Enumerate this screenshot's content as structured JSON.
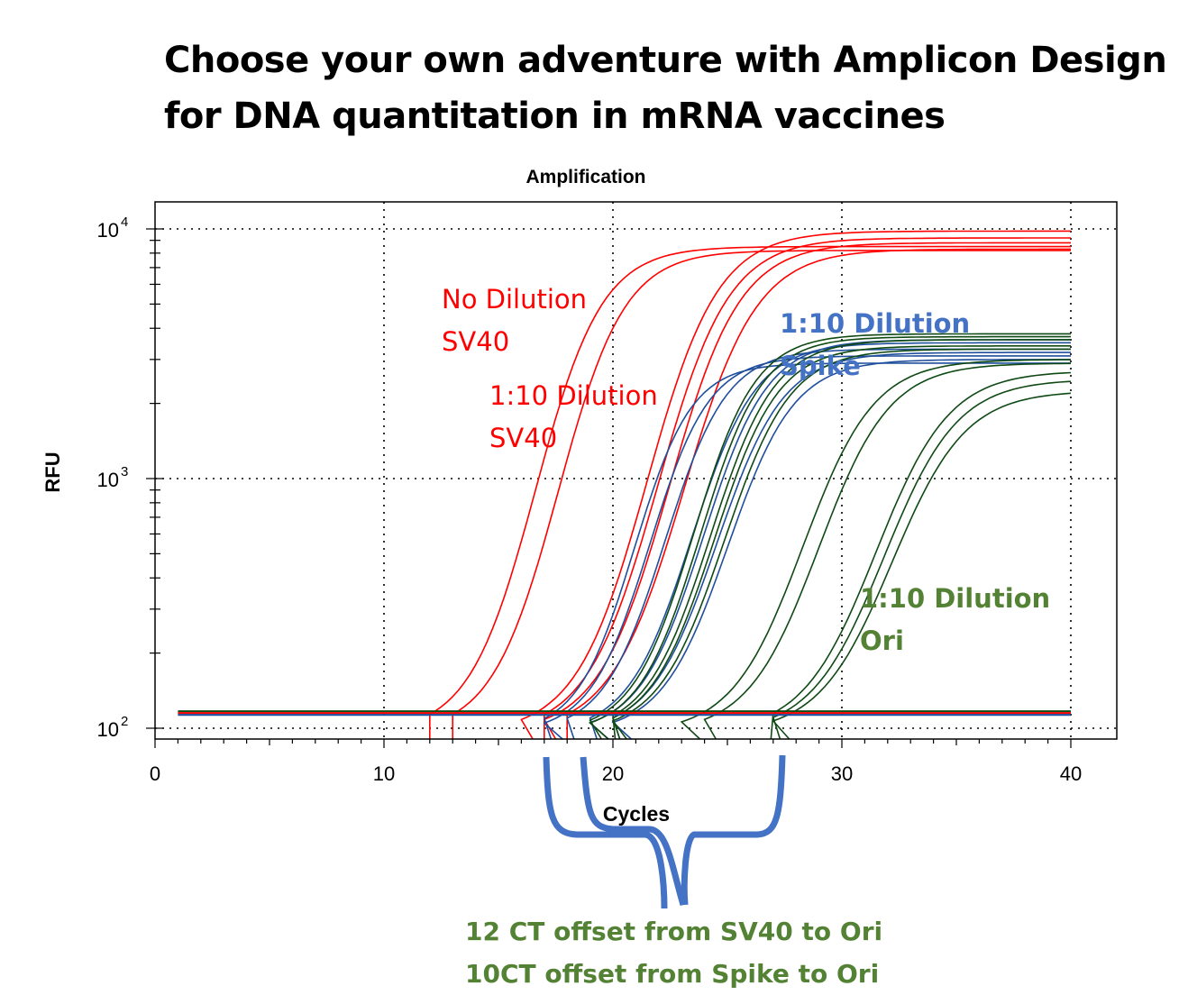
{
  "slide": {
    "title_line1": "Choose your own adventure with Amplicon Design",
    "title_line2": "for DNA quantitation in mRNA vaccines"
  },
  "annotations": {
    "sv40_nodilution": [
      "No Dilution",
      "SV40"
    ],
    "sv40_dilution": [
      "1:10 Dilution",
      "SV40"
    ],
    "spike_dilution": [
      "1:10 Dilution",
      "Spike"
    ],
    "ori_dilution": [
      "1:10 Dilution",
      "Ori"
    ],
    "offsets": [
      "12 CT offset from SV40 to Ori",
      "10CT offset from Spike to Ori"
    ]
  },
  "colors": {
    "sv40": "#ff0000",
    "spike": "#1f4e9c",
    "ori": "#0f4a14",
    "spike_label": "#4472c4",
    "ori_label": "#548235",
    "brace": "#4472c4"
  },
  "chart_data": {
    "type": "line",
    "title": "Amplification",
    "xlabel": "Cycles",
    "ylabel": "RFU",
    "xlim": [
      0,
      42
    ],
    "ylim": [
      90,
      13000
    ],
    "yscale": "log",
    "xticks": [
      0,
      10,
      20,
      30,
      40
    ],
    "yticks": [
      {
        "value": 100,
        "base": "10",
        "exp": "2"
      },
      {
        "value": 1000,
        "base": "10",
        "exp": "3"
      },
      {
        "value": 10000,
        "base": "10",
        "exp": "4"
      }
    ],
    "grid": true,
    "baseline_rfu": 115,
    "series": [
      {
        "group": "sv40",
        "ct": 12.1,
        "plateau": 8500,
        "slope": 1.45
      },
      {
        "group": "sv40",
        "ct": 13.1,
        "plateau": 8200,
        "slope": 1.45
      },
      {
        "group": "sv40",
        "ct": 16.6,
        "plateau": 9800,
        "slope": 1.55
      },
      {
        "group": "sv40",
        "ct": 17.1,
        "plateau": 9200,
        "slope": 1.55
      },
      {
        "group": "sv40",
        "ct": 17.6,
        "plateau": 8800,
        "slope": 1.55
      },
      {
        "group": "sv40",
        "ct": 18.1,
        "plateau": 8300,
        "slope": 1.6
      },
      {
        "group": "spike",
        "ct": 17.4,
        "plateau": 2900,
        "slope": 1.25
      },
      {
        "group": "spike",
        "ct": 17.9,
        "plateau": 3100,
        "slope": 1.3
      },
      {
        "group": "spike",
        "ct": 18.4,
        "plateau": 3300,
        "slope": 1.35
      },
      {
        "group": "spike",
        "ct": 19.4,
        "plateau": 3500,
        "slope": 1.4
      },
      {
        "group": "spike",
        "ct": 19.9,
        "plateau": 3600,
        "slope": 1.4
      },
      {
        "group": "spike",
        "ct": 20.4,
        "plateau": 3200,
        "slope": 1.45
      },
      {
        "group": "spike",
        "ct": 20.9,
        "plateau": 3000,
        "slope": 1.45
      },
      {
        "group": "ori",
        "ct": 19.6,
        "plateau": 3800,
        "slope": 1.35
      },
      {
        "group": "ori",
        "ct": 19.9,
        "plateau": 3700,
        "slope": 1.35
      },
      {
        "group": "ori",
        "ct": 20.2,
        "plateau": 3600,
        "slope": 1.4
      },
      {
        "group": "ori",
        "ct": 20.4,
        "plateau": 3400,
        "slope": 1.4
      },
      {
        "group": "ori",
        "ct": 20.7,
        "plateau": 3300,
        "slope": 1.45
      },
      {
        "group": "ori",
        "ct": 23.9,
        "plateau": 3000,
        "slope": 1.55
      },
      {
        "group": "ori",
        "ct": 24.6,
        "plateau": 2900,
        "slope": 1.55
      },
      {
        "group": "ori",
        "ct": 27.0,
        "plateau": 2700,
        "slope": 1.6
      },
      {
        "group": "ori",
        "ct": 27.4,
        "plateau": 2500,
        "slope": 1.6
      },
      {
        "group": "ori",
        "ct": 27.8,
        "plateau": 2250,
        "slope": 1.6
      }
    ]
  }
}
